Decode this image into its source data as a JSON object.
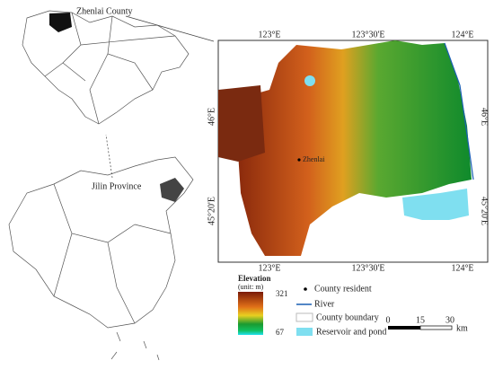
{
  "locator": {
    "county_label": "Zhenlai County",
    "province_label": "Jilin Province"
  },
  "map": {
    "top_labels": [
      "123°E",
      "123°30'E",
      "124°E"
    ],
    "bottom_labels": [
      "123°E",
      "123°30'E",
      "124°E"
    ],
    "left_labels": [
      "46°E",
      "45°20'E"
    ],
    "right_labels": [
      "46°E",
      "45°20'E"
    ],
    "town_label": "Zhenlai"
  },
  "legend": {
    "elevation_title": "Elevation",
    "elevation_unit": "(unit: m)",
    "elevation_max": "321",
    "elevation_min": "67",
    "items": [
      "County resident",
      "River",
      "County boundary",
      "Reservoir and pond"
    ],
    "scale_labels": [
      "0",
      "15",
      "30"
    ],
    "scale_unit": "km"
  }
}
